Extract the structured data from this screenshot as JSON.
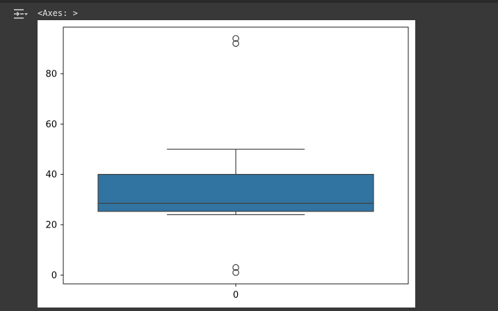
{
  "output": {
    "repr": "<Axes: >"
  },
  "colors": {
    "box_fill": "#3274a1",
    "line": "#3f3f3f",
    "page_bg": "#383838"
  },
  "icons": {
    "output_toggle": "output-collapse-icon"
  },
  "chart_data": {
    "type": "box",
    "categories": [
      "0"
    ],
    "xticks": [
      "0"
    ],
    "yticks": [
      0,
      20,
      40,
      60,
      80
    ],
    "ylim": [
      -3.5,
      98.5
    ],
    "grid": false,
    "box": {
      "whisker_low": 24,
      "q1": 25.3,
      "median": 28.5,
      "q3": 40,
      "whisker_high": 50
    },
    "outliers": [
      1,
      3,
      92,
      94
    ]
  }
}
